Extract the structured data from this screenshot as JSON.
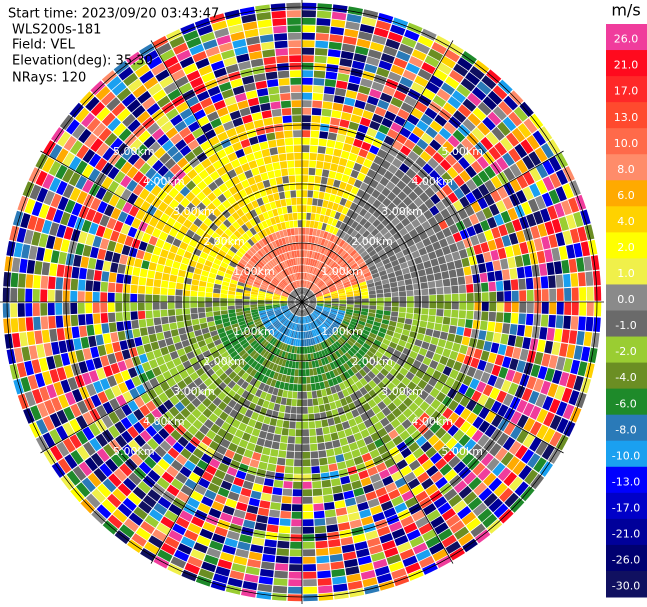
{
  "info": {
    "start_time": "Start time: 2023/09/20 03:43:47",
    "site": "WLS200s-181",
    "field": "Field: VEL",
    "elevation": "Elevation(deg): 35.30",
    "nrays": "NRays: 120"
  },
  "colorbar": {
    "unit": "m/s",
    "labels": [
      "26.0",
      "21.0",
      "17.0",
      "13.0",
      "10.0",
      "8.0",
      "6.0",
      "4.0",
      "2.0",
      "1.0",
      "0.0",
      "-1.0",
      "-2.0",
      "-4.0",
      "-6.0",
      "-8.0",
      "-10.0",
      "-13.0",
      "-17.0",
      "-21.0",
      "-26.0",
      "-30.0"
    ],
    "colors": [
      "#f03c9c",
      "#ff0a1e",
      "#ff2828",
      "#ff4a2e",
      "#ff6a4a",
      "#ff8c6a",
      "#ffaa00",
      "#ffd200",
      "#ffff00",
      "#f0f04a",
      "#8a8a8a",
      "#6a6a6a",
      "#9acd32",
      "#6b8e23",
      "#1e8a2a",
      "#2a7ab8",
      "#1aa0f0",
      "#0000ff",
      "#0000c8",
      "#00009a",
      "#000070",
      "#101060"
    ]
  },
  "range_rings": {
    "labels": [
      "1.00km",
      "2.00km",
      "3.00km",
      "4.00km",
      "5.00km"
    ]
  }
}
